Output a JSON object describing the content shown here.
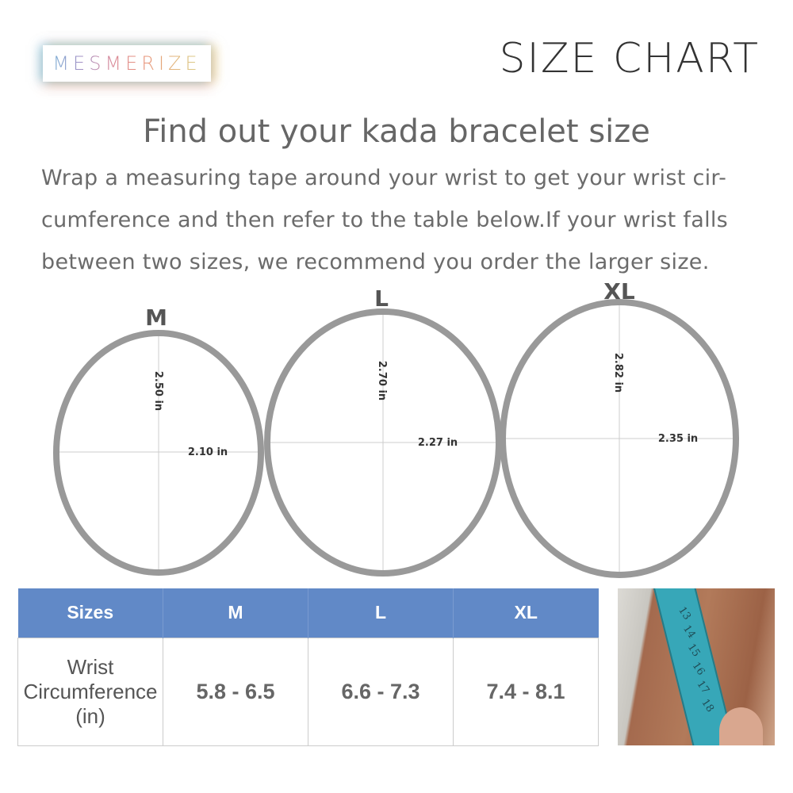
{
  "brand": {
    "logo_text": "MESMERIZE"
  },
  "header": {
    "title": "SIZE CHART"
  },
  "intro": {
    "heading": "Find out your kada bracelet size",
    "instructions": "Wrap a measuring tape around your wrist to get your wrist cir-cumference and then refer to the table below.If your wrist falls between two sizes, we recommend you order the larger size."
  },
  "rings": [
    {
      "size": "M",
      "height": "2.50 in",
      "width": "2.10 in"
    },
    {
      "size": "L",
      "height": "2.70 in",
      "width": "2.27 in"
    },
    {
      "size": "XL",
      "height": "2.82 in",
      "width": "2.35 in"
    }
  ],
  "table": {
    "headers": [
      "Sizes",
      "M",
      "L",
      "XL"
    ],
    "row_label": [
      "Wrist",
      "Circumference",
      "(in)"
    ],
    "values": [
      "5.8 - 6.5",
      "6.6 - 7.3",
      "7.4 - 8.1"
    ],
    "header_color": "#6189c7"
  },
  "photo": {
    "tape_marks": [
      "13",
      "14",
      "15",
      "16",
      "17",
      "18"
    ]
  }
}
